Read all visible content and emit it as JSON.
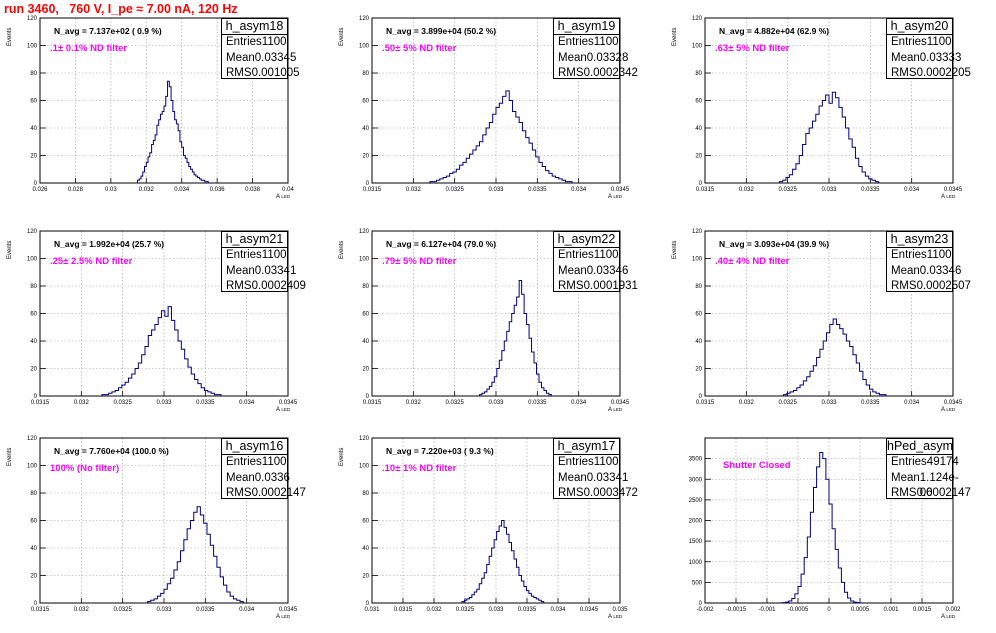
{
  "header": {
    "title": "run 3460,   760 V, I_pe ≈ 7.00 nA, 120 Hz"
  },
  "colors": {
    "title": "#ff0000",
    "histogram": "#000080",
    "annotation": "#ff00ff",
    "grid": "#999999"
  },
  "chart_data": [
    {
      "type": "histogram",
      "name": "h_asym18",
      "n_avg": "N_avg = 7.137e+02 ( 0.9 %)",
      "filter": ".1± 0.1% ND filter",
      "stats": {
        "entries": "1100",
        "mean": "0.03345",
        "rms": "0.001005"
      },
      "xlabel": "A",
      "xlabel_sub": "LED",
      "ylabel": "Events",
      "xlim": [
        0.026,
        0.04
      ],
      "ylim": [
        0,
        120
      ],
      "grid": true,
      "xticks": [
        "0.026",
        "0.028",
        "0.03",
        "0.032",
        "0.034",
        "0.036",
        "0.038",
        "0.04"
      ],
      "yticks": [
        "0",
        "20",
        "40",
        "60",
        "80",
        "100",
        "120"
      ],
      "x_start": 0.0315,
      "bin_width": 0.0001,
      "counts": [
        2,
        3,
        5,
        8,
        12,
        15,
        19,
        22,
        28,
        31,
        35,
        42,
        46,
        50,
        52,
        56,
        63,
        74,
        70,
        60,
        52,
        46,
        43,
        38,
        30,
        26,
        20,
        18,
        15,
        12,
        10,
        8,
        6,
        5,
        4,
        3,
        2,
        2,
        1,
        1
      ]
    },
    {
      "type": "histogram",
      "name": "h_asym19",
      "n_avg": "N_avg = 3.899e+04 (50.2 %)",
      "filter": ".50± 5% ND filter",
      "stats": {
        "entries": "1100",
        "mean": "0.03328",
        "rms": "0.0002342"
      },
      "xlabel": "A",
      "xlabel_sub": "LED",
      "ylabel": "Events",
      "xlim": [
        0.0315,
        0.0345
      ],
      "ylim": [
        0,
        120
      ],
      "grid": true,
      "xticks": [
        "0.0315",
        "0.032",
        "0.0325",
        "0.033",
        "0.0335",
        "0.034",
        "0.0345"
      ],
      "yticks": [
        "0",
        "20",
        "40",
        "60",
        "80",
        "100",
        "120"
      ],
      "x_start": 0.0322,
      "bin_width": 4e-05,
      "counts": [
        1,
        1,
        2,
        3,
        4,
        5,
        7,
        8,
        10,
        13,
        15,
        18,
        21,
        24,
        27,
        30,
        35,
        40,
        44,
        50,
        55,
        58,
        63,
        67,
        60,
        52,
        48,
        44,
        38,
        33,
        29,
        24,
        19,
        15,
        12,
        9,
        7,
        5,
        4,
        3,
        2,
        1,
        1
      ]
    },
    {
      "type": "histogram",
      "name": "h_asym20",
      "n_avg": "N_avg = 4.882e+04 (62.9 %)",
      "filter": ".63± 5% ND filter",
      "stats": {
        "entries": "1100",
        "mean": "0.03333",
        "rms": "0.0002205"
      },
      "xlabel": "A",
      "xlabel_sub": "LED",
      "ylabel": "Events",
      "xlim": [
        0.0315,
        0.0345
      ],
      "ylim": [
        0,
        120
      ],
      "grid": true,
      "xticks": [
        "0.0315",
        "0.032",
        "0.0325",
        "0.033",
        "0.0335",
        "0.034",
        "0.0345"
      ],
      "yticks": [
        "0",
        "20",
        "40",
        "60",
        "80",
        "100",
        "120"
      ],
      "x_start": 0.0324,
      "bin_width": 4e-05,
      "counts": [
        1,
        2,
        4,
        6,
        10,
        14,
        20,
        28,
        36,
        40,
        45,
        50,
        56,
        60,
        64,
        58,
        66,
        62,
        55,
        48,
        40,
        32,
        26,
        18,
        12,
        8,
        5,
        3,
        2,
        1
      ]
    },
    {
      "type": "histogram",
      "name": "h_asym21",
      "n_avg": "N_avg = 1.992e+04 (25.7 %)",
      "filter": ".25± 2.5% ND filter",
      "stats": {
        "entries": "1100",
        "mean": "0.03341",
        "rms": "0.0002409"
      },
      "xlabel": "A",
      "xlabel_sub": "LED",
      "ylabel": "Events",
      "xlim": [
        0.0315,
        0.0345
      ],
      "ylim": [
        0,
        120
      ],
      "grid": true,
      "xticks": [
        "0.0315",
        "0.032",
        "0.0325",
        "0.033",
        "0.0335",
        "0.034",
        "0.0345"
      ],
      "yticks": [
        "0",
        "20",
        "40",
        "60",
        "80",
        "100",
        "120"
      ],
      "x_start": 0.03225,
      "bin_width": 4e-05,
      "counts": [
        1,
        1,
        2,
        3,
        4,
        6,
        8,
        10,
        13,
        16,
        20,
        24,
        30,
        36,
        44,
        48,
        52,
        57,
        62,
        58,
        65,
        55,
        48,
        40,
        34,
        27,
        21,
        16,
        12,
        9,
        6,
        4,
        3,
        2,
        1,
        1
      ]
    },
    {
      "type": "histogram",
      "name": "h_asym22",
      "n_avg": "N_avg = 6.127e+04 (79.0 %)",
      "filter": ".79± 5% ND filter",
      "stats": {
        "entries": "1100",
        "mean": "0.03346",
        "rms": "0.0001931"
      },
      "xlabel": "A",
      "xlabel_sub": "LED",
      "ylabel": "Events",
      "xlim": [
        0.0315,
        0.0345
      ],
      "ylim": [
        0,
        120
      ],
      "grid": true,
      "xticks": [
        "0.0315",
        "0.032",
        "0.0325",
        "0.033",
        "0.0335",
        "0.034",
        "0.0345"
      ],
      "yticks": [
        "0",
        "20",
        "40",
        "60",
        "80",
        "100",
        "120"
      ],
      "x_start": 0.0328,
      "bin_width": 3e-05,
      "counts": [
        1,
        2,
        3,
        5,
        7,
        10,
        14,
        20,
        26,
        33,
        40,
        47,
        54,
        60,
        66,
        72,
        84,
        74,
        60,
        52,
        42,
        32,
        24,
        16,
        10,
        6,
        4,
        2,
        1
      ]
    },
    {
      "type": "histogram",
      "name": "h_asym23",
      "n_avg": "N_avg = 3.093e+04 (39.9 %)",
      "filter": ".40± 4% ND filter",
      "stats": {
        "entries": "1100",
        "mean": "0.03346",
        "rms": "0.0002507"
      },
      "xlabel": "A",
      "xlabel_sub": "LED",
      "ylabel": "Events",
      "xlim": [
        0.0315,
        0.0345
      ],
      "ylim": [
        0,
        120
      ],
      "grid": true,
      "xticks": [
        "0.0315",
        "0.032",
        "0.0325",
        "0.033",
        "0.0335",
        "0.034",
        "0.0345"
      ],
      "yticks": [
        "0",
        "20",
        "40",
        "60",
        "80",
        "100",
        "120"
      ],
      "x_start": 0.03245,
      "bin_width": 4e-05,
      "counts": [
        1,
        2,
        3,
        4,
        6,
        8,
        11,
        14,
        18,
        22,
        28,
        34,
        40,
        46,
        52,
        56,
        52,
        49,
        45,
        40,
        36,
        30,
        24,
        18,
        12,
        8,
        5,
        3,
        2,
        1,
        1
      ]
    },
    {
      "type": "histogram",
      "name": "h_asym16",
      "n_avg": "N_avg = 7.760e+04 (100.0 %)",
      "filter": "100% (No filter)",
      "stats": {
        "entries": "1100",
        "mean": "0.0336",
        "rms": "0.0002147"
      },
      "xlabel": "A",
      "xlabel_sub": "LED",
      "ylabel": "Events",
      "xlim": [
        0.0315,
        0.0345
      ],
      "ylim": [
        0,
        120
      ],
      "grid": true,
      "xticks": [
        "0.0315",
        "0.032",
        "0.0325",
        "0.033",
        "0.0335",
        "0.034",
        "0.0345"
      ],
      "yticks": [
        "0",
        "20",
        "40",
        "60",
        "80",
        "100",
        "120"
      ],
      "x_start": 0.0328,
      "bin_width": 4e-05,
      "counts": [
        1,
        2,
        3,
        5,
        7,
        10,
        14,
        18,
        24,
        30,
        38,
        46,
        54,
        60,
        66,
        70,
        64,
        58,
        50,
        42,
        34,
        26,
        19,
        13,
        8,
        5,
        3,
        2,
        1
      ]
    },
    {
      "type": "histogram",
      "name": "h_asym17",
      "n_avg": "N_avg = 7.220e+03 ( 9.3 %)",
      "filter": ".10± 1% ND filter",
      "stats": {
        "entries": "1100",
        "mean": "0.03341",
        "rms": "0.0003472"
      },
      "xlabel": "A",
      "xlabel_sub": "LED",
      "ylabel": "Events",
      "xlim": [
        0.031,
        0.035
      ],
      "ylim": [
        0,
        120
      ],
      "grid": true,
      "xticks": [
        "0.031",
        "0.0315",
        "0.032",
        "0.0325",
        "0.033",
        "0.0335",
        "0.034",
        "0.0345",
        "0.035"
      ],
      "yticks": [
        "0",
        "20",
        "40",
        "60",
        "80",
        "100",
        "120"
      ],
      "x_start": 0.03245,
      "bin_width": 4e-05,
      "counts": [
        1,
        2,
        3,
        4,
        6,
        8,
        10,
        14,
        18,
        22,
        28,
        34,
        40,
        46,
        52,
        56,
        60,
        55,
        50,
        44,
        38,
        32,
        26,
        20,
        16,
        12,
        9,
        7,
        5,
        4,
        3,
        2,
        1
      ]
    },
    {
      "type": "histogram",
      "name": "hPed_asym",
      "n_avg": "",
      "filter": "Shutter Closed",
      "stats": {
        "entries": "49174",
        "mean": "1.124e-06",
        "rms": "0.0002147"
      },
      "xlabel": "A",
      "xlabel_sub": "LED",
      "ylabel": "",
      "xlim": [
        -0.002,
        0.002
      ],
      "ylim": [
        0,
        4000
      ],
      "grid": true,
      "xticks": [
        "-0.002",
        "-0.0015",
        "-0.001",
        "-0.0005",
        "0",
        "0.0005",
        "0.001",
        "0.0015",
        "0.002"
      ],
      "yticks": [
        "0",
        "500",
        "1000",
        "1500",
        "2000",
        "2500",
        "3000",
        "3500"
      ],
      "x_start": -0.0008,
      "bin_width": 5e-05,
      "counts": [
        3,
        8,
        20,
        50,
        110,
        220,
        400,
        700,
        1100,
        1600,
        2200,
        2800,
        3300,
        3650,
        3500,
        3000,
        2400,
        1800,
        1300,
        850,
        500,
        260,
        120,
        50,
        20,
        8,
        3
      ]
    }
  ]
}
